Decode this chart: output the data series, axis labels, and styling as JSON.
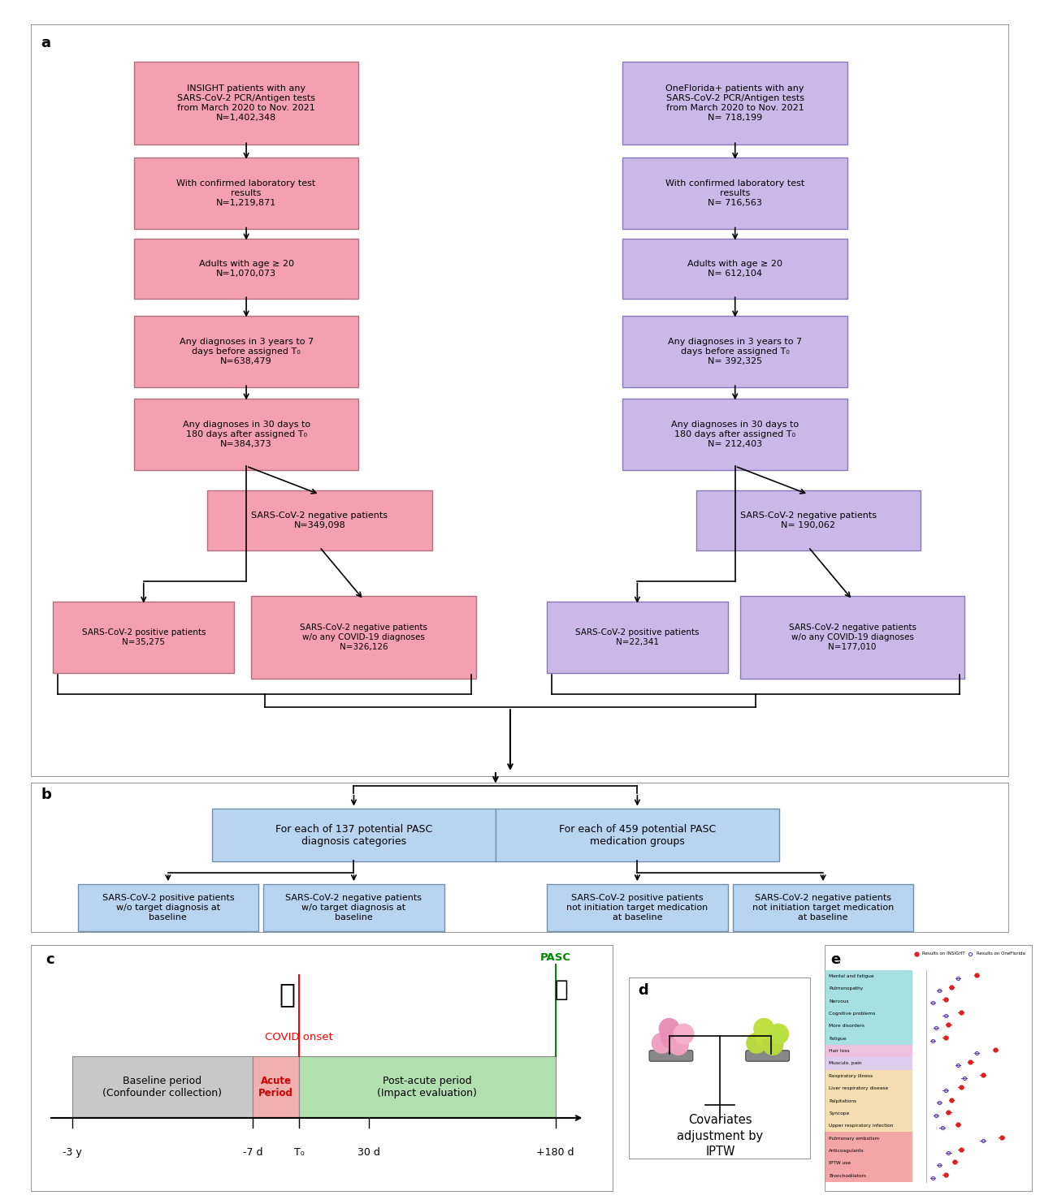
{
  "fig_width": 12.8,
  "fig_height": 14.83,
  "panel_a": {
    "insight_color": "#f4a0b0",
    "insight_edge": "#b07080",
    "oneflorida_color": "#ccb8e8",
    "oneflorida_edge": "#8878b8",
    "insight_texts": [
      "INSIGHT patients with any\nSARS-CoV-2 PCR/Antigen tests\nfrom March 2020 to Nov. 2021\nN=1,402,348",
      "With confirmed laboratory test\nresults\nN=1,219,871",
      "Adults with age ≥ 20\nN=1,070,073",
      "Any diagnoses in 3 years to 7\ndays before assigned T₀\nN=638,479",
      "Any diagnoses in 30 days to\n180 days after assigned T₀\nN=384,373",
      "SARS-CoV-2 negative patients\nN=349,098",
      "SARS-CoV-2 positive patients\nN=35,275",
      "SARS-CoV-2 negative patients\nw/o any COVID-19 diagnoses\nN=326,126"
    ],
    "oneflorida_texts": [
      "OneFlorida+ patients with any\nSARS-CoV-2 PCR/Antigen tests\nfrom March 2020 to Nov. 2021\nN= 718,199",
      "With confirmed laboratory test\nresults\nN= 716,563",
      "Adults with age ≥ 20\nN= 612,104",
      "Any diagnoses in 3 years to 7\ndays before assigned T₀\nN= 392,325",
      "Any diagnoses in 30 days to\n180 days after assigned T₀\nN= 212,403",
      "SARS-CoV-2 negative patients\nN= 190,062",
      "SARS-CoV-2 positive patients\nN=22,341",
      "SARS-CoV-2 negative patients\nw/o any COVID-19 diagnoses\nN=177,010"
    ]
  },
  "panel_b": {
    "box_color": "#b8d4f0",
    "box_edge": "#7090b0",
    "top_texts": [
      "For each of 137 potential PASC\ndiagnosis categories",
      "For each of 459 potential PASC\nmedication groups"
    ],
    "bottom_texts": [
      "SARS-CoV-2 positive patients\nw/o target diagnosis at\nbaseline",
      "SARS-CoV-2 negative patients\nw/o target diagnosis at\nbaseline",
      "SARS-CoV-2 positive patients\nnot initiation target medication\nat baseline",
      "SARS-CoV-2 negative patients\nnot initiation target medication\nat baseline"
    ]
  },
  "panel_c": {
    "baseline_color": "#c8c8c8",
    "acute_color": "#f0b0b0",
    "postacute_color": "#b0e0b0",
    "covid_label": "COVID onset",
    "pasc_label": "PASC",
    "tick_labels": [
      "-3 y",
      "-7 d",
      "T₀",
      "30 d",
      "+180 d"
    ],
    "section_labels": [
      "Baseline period\n(Confounder collection)",
      "Acute\nPeriod",
      "Post-acute period\n(Impact evaluation)"
    ]
  },
  "panel_d": {
    "text": "Covariates\nadjustment by\nIPTW"
  },
  "panel_e": {
    "categories": [
      "Mental and fatigue",
      "Pulmonopathy",
      "Nervous",
      "Cognitive problems",
      "More disorders",
      "Fatigue",
      "Hair loss",
      "Musculo. pain",
      "Respiratory illness",
      "Liver respiratory disease",
      "Palpitations",
      "Syncope",
      "Upper respiratory infection",
      "Pulmonary embolism",
      "Anticoagulants",
      "IPTW use",
      "Bronchodilators"
    ],
    "insight_values": [
      1.8,
      1.4,
      1.3,
      1.55,
      1.35,
      1.3,
      2.1,
      1.7,
      1.9,
      1.55,
      1.4,
      1.35,
      1.5,
      2.2,
      1.55,
      1.45,
      1.3
    ],
    "oneflorida_values": [
      1.5,
      1.2,
      1.1,
      1.3,
      1.15,
      1.1,
      1.8,
      1.5,
      1.6,
      1.3,
      1.2,
      1.15,
      1.25,
      1.9,
      1.35,
      1.2,
      1.1
    ],
    "section_bg_colors": [
      "#80d4d4",
      "#80d4d4",
      "#80d4d4",
      "#80d4d4",
      "#80d4d4",
      "#80d4d4",
      "#e8a8d0",
      "#d0b8e8",
      "#f0d090",
      "#f0d090",
      "#f0d090",
      "#f0d090",
      "#f0d090",
      "#f08080",
      "#f08080",
      "#f08080",
      "#f08080"
    ],
    "insight_dot_color": "#e02020",
    "oneflorida_dot_color": "#6040b0"
  }
}
